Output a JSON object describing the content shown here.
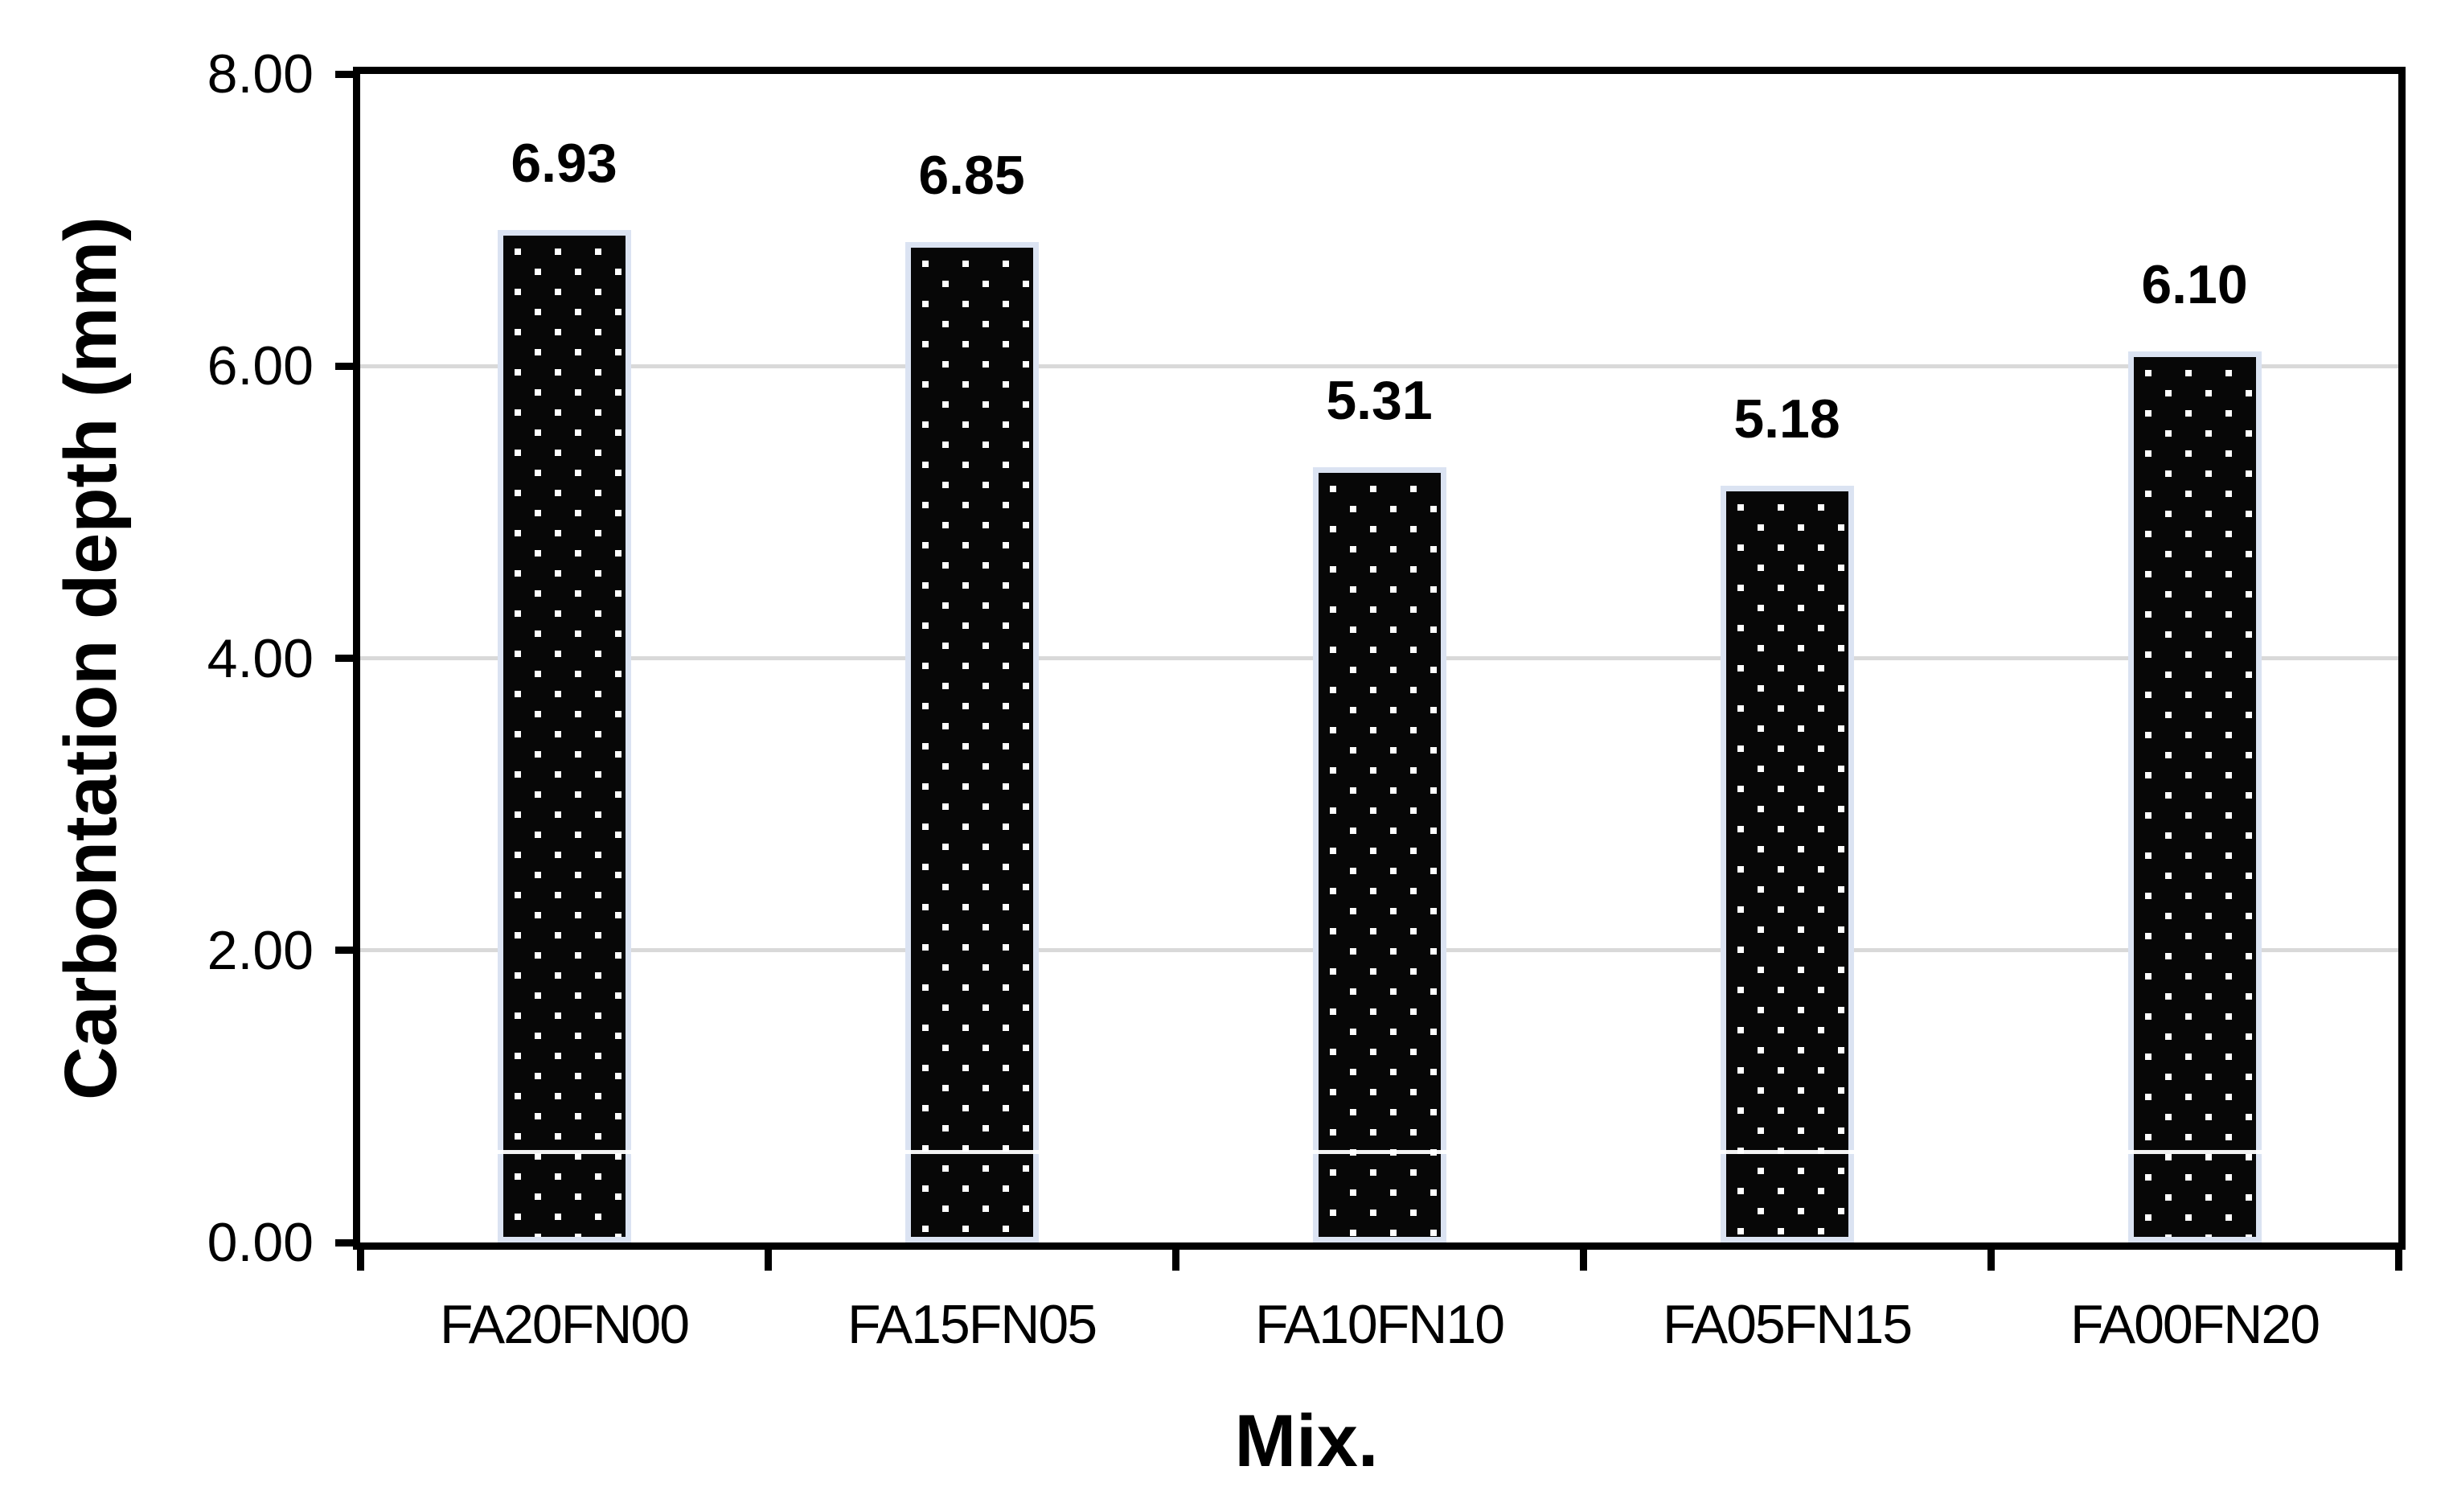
{
  "chart_data": {
    "type": "bar",
    "title": "",
    "categories": [
      "FA20FN00",
      "FA15FN05",
      "FA10FN10",
      "FA05FN15",
      "FA00FN20"
    ],
    "values": [
      6.93,
      6.85,
      5.31,
      5.18,
      6.1
    ],
    "value_labels": [
      "6.93",
      "6.85",
      "5.31",
      "5.18",
      "6.10"
    ],
    "xlabel": "Mix.",
    "ylabel": "Carbontation depth (mm)",
    "ylim": [
      0,
      8
    ],
    "yticks": [
      {
        "value": 0,
        "label": "0.00"
      },
      {
        "value": 2,
        "label": "2.00"
      },
      {
        "value": 4,
        "label": "4.00"
      },
      {
        "value": 6,
        "label": "6.00"
      },
      {
        "value": 8,
        "label": "8.00"
      }
    ],
    "grid": true,
    "legend": false,
    "colors": {
      "bar_fill": "#070707",
      "bar_dots": "#ffffff",
      "bar_border": "#dbe3f2",
      "gridline": "#d9d9d9",
      "axis": "#000000",
      "text": "#000000",
      "background": "#ffffff"
    }
  }
}
